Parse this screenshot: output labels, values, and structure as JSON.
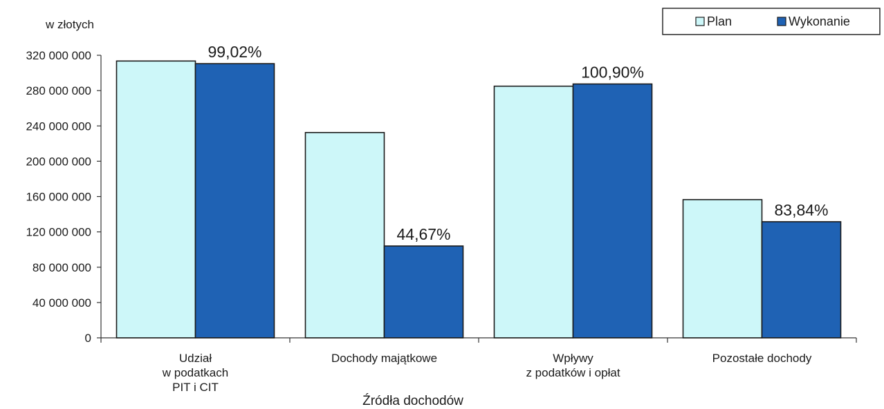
{
  "chart_data": {
    "type": "bar",
    "unit_label": "w złotych",
    "xlabel": "Źródła dochodów",
    "ylabel": "",
    "ylim": [
      0,
      320000000
    ],
    "y_ticks": [
      {
        "value": 0,
        "label": "0"
      },
      {
        "value": 40000000,
        "label": "40 000 000"
      },
      {
        "value": 80000000,
        "label": "80 000 000"
      },
      {
        "value": 120000000,
        "label": "120 000 000"
      },
      {
        "value": 160000000,
        "label": "160 000 000"
      },
      {
        "value": 200000000,
        "label": "200 000 000"
      },
      {
        "value": 240000000,
        "label": "240 000 000"
      },
      {
        "value": 280000000,
        "label": "280 000 000"
      },
      {
        "value": 320000000,
        "label": "320 000 000"
      }
    ],
    "categories": [
      [
        "Udział",
        "w podatkach",
        "PIT i CIT"
      ],
      [
        "Dochody majątkowe"
      ],
      [
        "Wpływy",
        "z podatków i opłat"
      ],
      [
        "Pozostałe dochody"
      ]
    ],
    "series": [
      {
        "name": "Plan",
        "color": "#cdf7f9",
        "values": [
          313500000,
          232500000,
          285000000,
          156500000
        ]
      },
      {
        "name": "Wykonanie",
        "color": "#1f62b4",
        "values": [
          310500000,
          104000000,
          287500000,
          131500000
        ]
      }
    ],
    "data_labels": [
      "99,02%",
      "44,67%",
      "100,90%",
      "83,84%"
    ],
    "legend": {
      "position": "top-right"
    },
    "grid": false
  }
}
